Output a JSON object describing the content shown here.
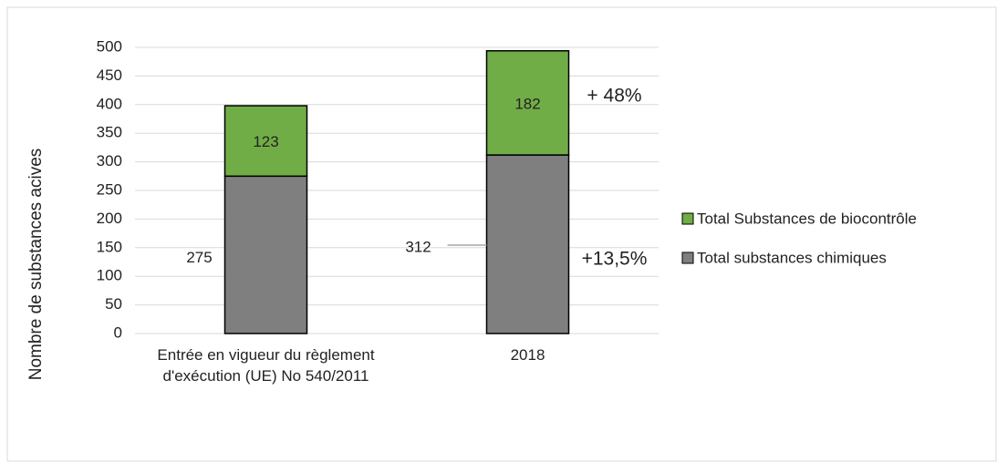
{
  "chart_data": {
    "type": "bar",
    "stacked": true,
    "y_label": "Nombre de substances acives",
    "categories": [
      "Entrée en vigueur du règlement d'exécution  (UE) No 540/2011",
      "2018"
    ],
    "series": [
      {
        "name": "Total substances chimiques",
        "color": "#7f7f7f",
        "values": [
          275,
          312
        ]
      },
      {
        "name": "Total Substances de biocontrôle",
        "color": "#70ad47",
        "values": [
          123,
          182
        ]
      }
    ],
    "annotations": [
      "+13,5%",
      "+ 48%"
    ],
    "ylim": [
      0,
      500
    ],
    "yticks": [
      0,
      50,
      100,
      150,
      200,
      250,
      300,
      350,
      400,
      450,
      500
    ],
    "grid": true,
    "legend": "right"
  }
}
